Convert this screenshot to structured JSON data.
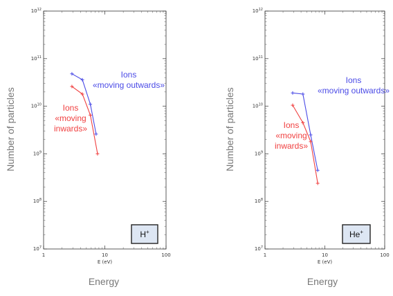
{
  "chart_data": [
    {
      "type": "line",
      "xscale": "log",
      "yscale": "log",
      "xlim": [
        1,
        100
      ],
      "ylim": [
        10000000,
        1000000000000
      ],
      "x_ticks": [
        {
          "value": 1,
          "label": "1"
        },
        {
          "value": 10,
          "label": "10"
        },
        {
          "value": 100,
          "label": "100"
        }
      ],
      "y_ticks": [
        {
          "value": 10000000,
          "base": "10",
          "exp": "7"
        },
        {
          "value": 100000000,
          "base": "10",
          "exp": "8"
        },
        {
          "value": 1000000000,
          "base": "10",
          "exp": "9"
        },
        {
          "value": 10000000000,
          "base": "10",
          "exp": "10"
        },
        {
          "value": 100000000000,
          "base": "10",
          "exp": "11"
        },
        {
          "value": 1000000000000,
          "base": "10",
          "exp": "12"
        }
      ],
      "xlabel_small": "E (eV)",
      "xlabel": "Energy",
      "ylabel": "Number of particles",
      "badge": {
        "base": "H",
        "sup": "+"
      },
      "series": [
        {
          "color": "#4a4ae6",
          "x": [
            2.9,
            4.3,
            5.8,
            7.2
          ],
          "y": [
            48000000000,
            36000000000,
            11000000000,
            2600000000
          ],
          "label_lines": [
            "Ions",
            "«moving outwards»"
          ]
        },
        {
          "color": "#f04040",
          "x": [
            2.9,
            4.3,
            5.8,
            7.6
          ],
          "y": [
            26000000000,
            18000000000,
            6500000000,
            1000000000
          ],
          "label_lines": [
            "Ions",
            "«moving",
            "inwards»"
          ]
        }
      ]
    },
    {
      "type": "line",
      "xscale": "log",
      "yscale": "log",
      "xlim": [
        1,
        100
      ],
      "ylim": [
        10000000,
        1000000000000
      ],
      "x_ticks": [
        {
          "value": 1,
          "label": "1"
        },
        {
          "value": 10,
          "label": "10"
        },
        {
          "value": 100,
          "label": "100"
        }
      ],
      "y_ticks": [
        {
          "value": 10000000,
          "base": "10",
          "exp": "7"
        },
        {
          "value": 100000000,
          "base": "10",
          "exp": "8"
        },
        {
          "value": 1000000000,
          "base": "10",
          "exp": "9"
        },
        {
          "value": 10000000000,
          "base": "10",
          "exp": "10"
        },
        {
          "value": 100000000000,
          "base": "10",
          "exp": "11"
        },
        {
          "value": 1000000000000,
          "base": "10",
          "exp": "12"
        }
      ],
      "xlabel_small": "E (eV)",
      "xlabel": "Energy",
      "ylabel": "Number of particles",
      "badge": {
        "base": "He",
        "sup": "+"
      },
      "series": [
        {
          "color": "#4a4ae6",
          "x": [
            2.9,
            4.3,
            5.8,
            7.6
          ],
          "y": [
            19000000000,
            18000000000,
            2500000000,
            450000000
          ],
          "label_lines": [
            "Ions",
            "«moving outwards»"
          ]
        },
        {
          "color": "#f04040",
          "x": [
            2.9,
            4.3,
            5.8,
            7.6
          ],
          "y": [
            10500000000,
            4500000000,
            1800000000,
            240000000
          ],
          "label_lines": [
            "Ions",
            "«moving",
            "inwards»"
          ]
        }
      ]
    }
  ]
}
